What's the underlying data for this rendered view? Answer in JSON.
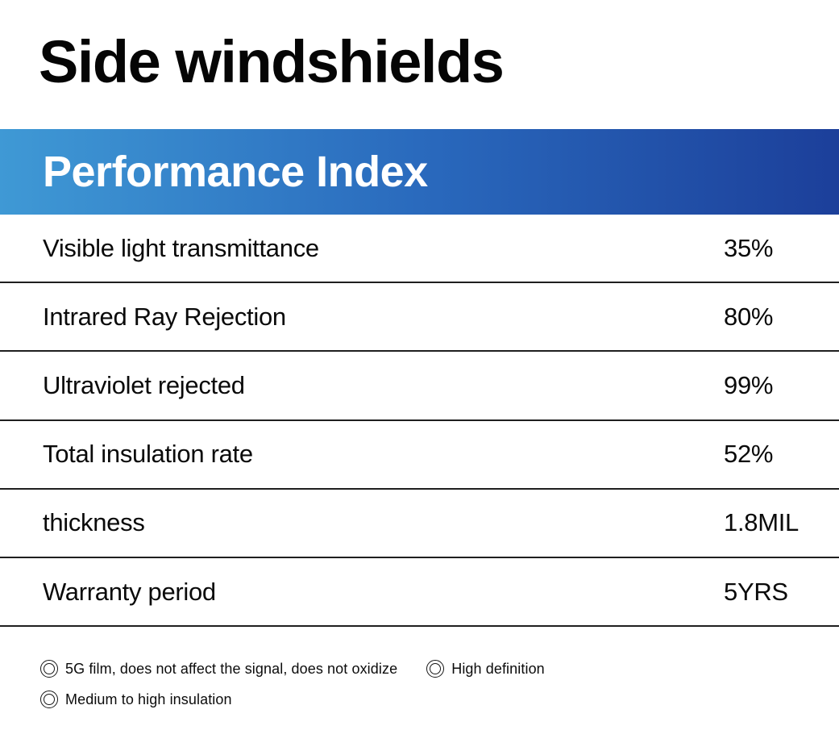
{
  "page": {
    "title": "Side windshields"
  },
  "banner": {
    "title": "Performance Index"
  },
  "colors": {
    "banner_gradient_start": "#3F99D5",
    "banner_gradient_mid": "#2968BC",
    "banner_gradient_end": "#1C3F9A",
    "divider": "#1F1F1F",
    "text": "#0A0A0A",
    "banner_text": "#FFFFFF"
  },
  "table": {
    "rows": [
      {
        "label": "Visible light transmittance",
        "value": "35%"
      },
      {
        "label": "Intrared Ray Rejection",
        "value": "80%"
      },
      {
        "label": "Ultraviolet rejected",
        "value": "99%"
      },
      {
        "label": "Total insulation rate",
        "value": "52%"
      },
      {
        "label": "thickness",
        "value": "1.8MIL"
      },
      {
        "label": "Warranty period",
        "value": "5YRS"
      }
    ]
  },
  "features": {
    "items": [
      {
        "label": "5G film, does not affect the signal, does not oxidize"
      },
      {
        "label": "High definition"
      },
      {
        "label": "Medium to high insulation"
      }
    ]
  }
}
